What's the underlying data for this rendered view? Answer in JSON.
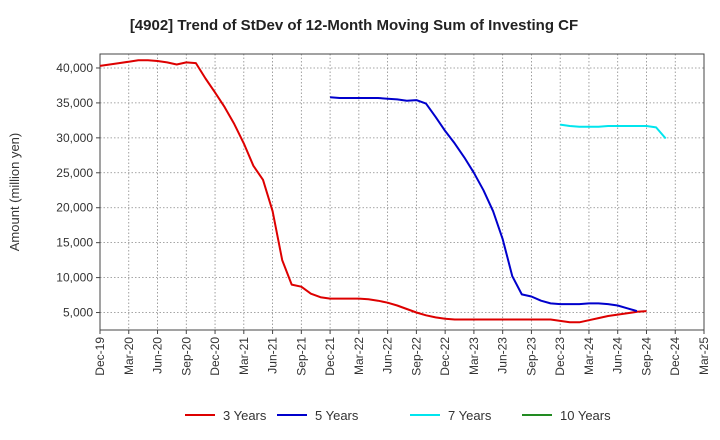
{
  "chart_data": {
    "type": "line",
    "title": "[4902]  Trend of StDev of 12-Month Moving Sum of Investing CF",
    "ylabel": "Amount (million yen)",
    "xlabel": "",
    "ylim": [
      2500,
      42000
    ],
    "yticks": [
      5000,
      10000,
      15000,
      20000,
      25000,
      30000,
      35000,
      40000
    ],
    "ytick_labels": [
      "5,000",
      "10,000",
      "15,000",
      "20,000",
      "25,000",
      "30,000",
      "35,000",
      "40,000"
    ],
    "xticks": [
      "Dec-19",
      "Mar-20",
      "Jun-20",
      "Sep-20",
      "Dec-20",
      "Mar-21",
      "Jun-21",
      "Sep-21",
      "Dec-21",
      "Mar-22",
      "Jun-22",
      "Sep-22",
      "Dec-22",
      "Mar-23",
      "Jun-23",
      "Sep-23",
      "Dec-23",
      "Mar-24",
      "Jun-24",
      "Sep-24",
      "Dec-24",
      "Mar-25"
    ],
    "grid": true,
    "legend_position": "bottom",
    "series": [
      {
        "name": "3 Years",
        "color": "#dd0000",
        "start_index": 0,
        "values": [
          40300,
          40500,
          40700,
          40900,
          41100,
          41100,
          41000,
          40800,
          40500,
          40800,
          40700,
          38500,
          36500,
          34400,
          32000,
          29200,
          26000,
          24000,
          19500,
          12500,
          9000,
          8700,
          7700,
          7200,
          7000,
          7000,
          7000,
          7000,
          6900,
          6700,
          6400,
          6000,
          5500,
          5000,
          4600,
          4300,
          4100,
          4000,
          4000,
          4000,
          4000,
          4000,
          4000,
          4000,
          4000,
          4000,
          4000,
          4000,
          3800,
          3600,
          3600,
          3900,
          4200,
          4500,
          4700,
          4900,
          5100,
          5200
        ]
      },
      {
        "name": "5 Years",
        "color": "#0000cc",
        "start_index": 24,
        "values": [
          35800,
          35700,
          35700,
          35700,
          35700,
          35700,
          35600,
          35500,
          35300,
          35400,
          34900,
          33000,
          31000,
          29200,
          27200,
          25000,
          22500,
          19500,
          15500,
          10200,
          7600,
          7300,
          6700,
          6300,
          6200,
          6200,
          6200,
          6300,
          6300,
          6200,
          6000,
          5600,
          5200
        ]
      },
      {
        "name": "7 Years",
        "color": "#00e5ee",
        "start_index": 48,
        "values": [
          31900,
          31700,
          31600,
          31600,
          31600,
          31700,
          31700,
          31700,
          31700,
          31700,
          31500,
          29900
        ]
      },
      {
        "name": "10 Years",
        "color": "#228b22",
        "start_index": 0,
        "values": []
      }
    ]
  }
}
